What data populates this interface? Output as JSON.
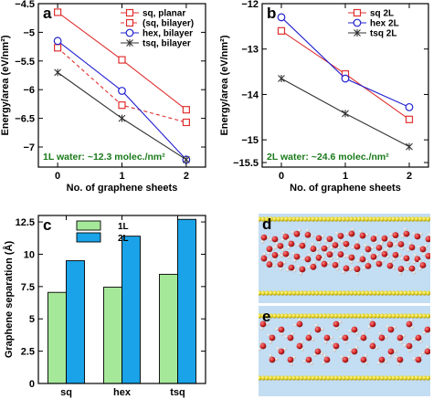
{
  "chart_data": [
    {
      "panel": "a",
      "type": "line",
      "categories": [
        "0",
        "1",
        "2"
      ],
      "x": [
        0,
        1,
        2
      ],
      "xlabel": "No. of graphene sheets",
      "ylabel": "Energy/area (eV/nm²)",
      "ylim": [
        -7.35,
        -4.5
      ],
      "yticks": [
        -7,
        -6.5,
        -6,
        -5.5,
        -5,
        -4.5
      ],
      "ytick_labels": [
        "−7",
        "−6.5",
        "−6",
        "−5.5",
        "−5",
        "−4.5"
      ],
      "annotation": "1L water: ~12.3  molec./nm²",
      "legend_position": "top-right",
      "series": [
        {
          "name": "sq, planar",
          "values": [
            -4.65,
            -5.48,
            -6.35
          ],
          "color": "#e03030",
          "marker": "square",
          "dash": false
        },
        {
          "name": "(sq, bilayer)",
          "values": [
            -5.27,
            -6.27,
            -6.57
          ],
          "color": "#e03030",
          "marker": "square",
          "dash": true
        },
        {
          "name": "hex, bilayer",
          "values": [
            -5.15,
            -6.02,
            -7.22
          ],
          "color": "#2020d0",
          "marker": "circle",
          "dash": false
        },
        {
          "name": "tsq, bilayer",
          "values": [
            -5.7,
            -6.5,
            -7.22
          ],
          "color": "#333333",
          "marker": "star",
          "dash": false
        }
      ]
    },
    {
      "panel": "b",
      "type": "line",
      "categories": [
        "0",
        "1",
        "2"
      ],
      "x": [
        0,
        1,
        2
      ],
      "xlabel": "No. of graphene sheets",
      "ylabel": "Energy/area (eV/nm²)",
      "ylim": [
        -15.6,
        -12
      ],
      "yticks": [
        -15.5,
        -15,
        -14,
        -13,
        -12
      ],
      "ytick_labels": [
        "−15.5",
        "−15",
        "−14",
        "−13",
        "−12"
      ],
      "annotation": "2L water: ~24.6  molec./nm²",
      "legend_position": "top-right",
      "series": [
        {
          "name": "sq 2L",
          "values": [
            -12.6,
            -13.55,
            -14.55
          ],
          "color": "#e03030",
          "marker": "square",
          "dash": false
        },
        {
          "name": "hex 2L",
          "values": [
            -12.3,
            -13.65,
            -14.28
          ],
          "color": "#2020d0",
          "marker": "circle",
          "dash": false
        },
        {
          "name": "tsq 2L",
          "values": [
            -13.65,
            -14.42,
            -15.15
          ],
          "color": "#333333",
          "marker": "star",
          "dash": false
        }
      ]
    },
    {
      "panel": "c",
      "type": "bar",
      "categories": [
        "sq",
        "hex",
        "tsq"
      ],
      "ylabel": "Graphene separation (Å)",
      "ylim": [
        0,
        13
      ],
      "yticks": [
        0,
        2.5,
        5,
        7.5,
        10,
        12.5
      ],
      "ytick_labels": [
        "0",
        "2.5",
        "5",
        "7.5",
        "10",
        "12.5"
      ],
      "legend_position": "top-left",
      "series": [
        {
          "name": "1L",
          "values": [
            7.05,
            7.45,
            8.45
          ],
          "color": "#a6e89a"
        },
        {
          "name": "2L",
          "values": [
            9.5,
            11.4,
            12.7
          ],
          "color": "#1aa3e8"
        }
      ]
    }
  ],
  "panels": {
    "a": "a",
    "b": "b",
    "c": "c",
    "d": "d",
    "e": "e"
  },
  "colors": {
    "water_background": "#c3ddf2",
    "graphene": "#e3d21e",
    "oxygen": "#cc2222",
    "hydrogen": "#eeeeee"
  }
}
